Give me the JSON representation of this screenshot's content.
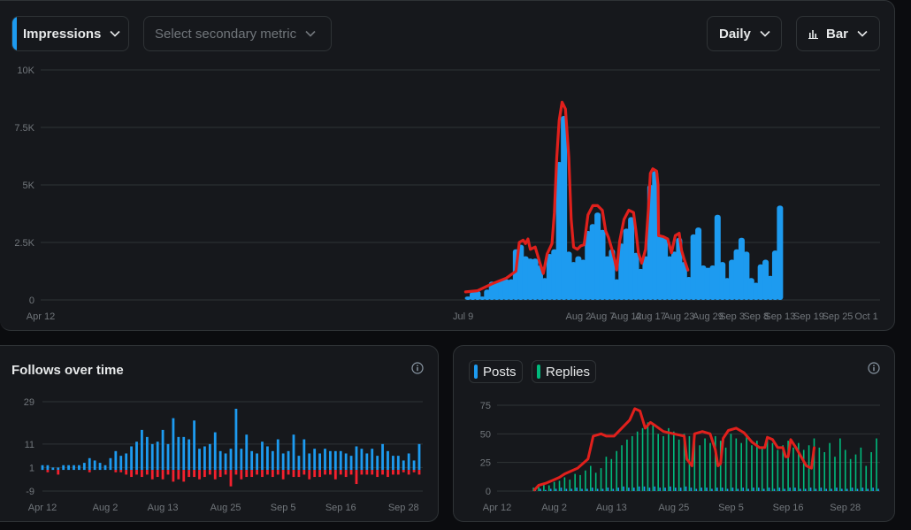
{
  "toolbar": {
    "primary_metric": "Impressions",
    "secondary_placeholder": "Select secondary metric",
    "interval": "Daily",
    "chart_type": "Bar"
  },
  "follows": {
    "title": "Follows over time"
  },
  "posts_legend": {
    "posts": "Posts",
    "replies": "Replies"
  },
  "colors": {
    "blue": "#1d9bf0",
    "green": "#00ba7c",
    "red": "#f4212e",
    "annotation": "#e0201c"
  },
  "chart_data": [
    {
      "name": "impressions",
      "type": "bar",
      "ylim": [
        0,
        10000
      ],
      "yticks": [
        0,
        2500,
        5000,
        7500,
        10000
      ],
      "ytick_labels": [
        "0",
        "2.5K",
        "5K",
        "7.5K",
        "10K"
      ],
      "xticks": [
        {
          "label": "Apr 12",
          "i": 0
        },
        {
          "label": "Jul 9",
          "i": 88
        },
        {
          "label": "Aug 2",
          "i": 112
        },
        {
          "label": "Aug 7",
          "i": 117
        },
        {
          "label": "Aug 12",
          "i": 122
        },
        {
          "label": "Aug 17",
          "i": 127
        },
        {
          "label": "Aug 23",
          "i": 133
        },
        {
          "label": "Aug 29",
          "i": 139
        },
        {
          "label": "Sep 3",
          "i": 144
        },
        {
          "label": "Sep 8",
          "i": 149
        },
        {
          "label": "Sep 13",
          "i": 154
        },
        {
          "label": "Sep 19",
          "i": 160
        },
        {
          "label": "Sep 25",
          "i": 166
        },
        {
          "label": "Oct 1",
          "i": 172
        }
      ],
      "domain": [
        0,
        173
      ],
      "bars": [
        [
          89,
          150
        ],
        [
          90,
          350
        ],
        [
          91,
          400
        ],
        [
          92,
          150
        ],
        [
          93,
          450
        ],
        [
          94,
          800
        ],
        [
          95,
          800
        ],
        [
          96,
          900
        ],
        [
          97,
          900
        ],
        [
          98,
          900
        ],
        [
          99,
          2200
        ],
        [
          100,
          2400
        ],
        [
          101,
          1900
        ],
        [
          102,
          1800
        ],
        [
          103,
          1800
        ],
        [
          104,
          1500
        ],
        [
          105,
          950
        ],
        [
          106,
          2000
        ],
        [
          107,
          2200
        ],
        [
          108,
          6000
        ],
        [
          109,
          8000
        ],
        [
          110,
          2100
        ],
        [
          111,
          1650
        ],
        [
          112,
          1900
        ],
        [
          113,
          1750
        ],
        [
          114,
          3000
        ],
        [
          115,
          3300
        ],
        [
          116,
          3800
        ],
        [
          117,
          3050
        ],
        [
          118,
          1900
        ],
        [
          119,
          2200
        ],
        [
          120,
          900
        ],
        [
          121,
          2450
        ],
        [
          122,
          3100
        ],
        [
          123,
          3600
        ],
        [
          124,
          2050
        ],
        [
          125,
          1350
        ],
        [
          126,
          1900
        ],
        [
          127,
          5000
        ],
        [
          128,
          5600
        ],
        [
          129,
          2750
        ],
        [
          130,
          2750
        ],
        [
          131,
          1900
        ],
        [
          132,
          2100
        ],
        [
          133,
          2700
        ],
        [
          134,
          1650
        ],
        [
          135,
          1000
        ],
        [
          136,
          2850
        ],
        [
          137,
          3150
        ],
        [
          138,
          1500
        ],
        [
          139,
          1400
        ],
        [
          140,
          1500
        ],
        [
          141,
          3700
        ],
        [
          142,
          1650
        ],
        [
          143,
          950
        ],
        [
          144,
          1750
        ],
        [
          145,
          2200
        ],
        [
          146,
          2700
        ],
        [
          147,
          2100
        ],
        [
          148,
          950
        ],
        [
          149,
          750
        ],
        [
          150,
          1550
        ],
        [
          151,
          1750
        ],
        [
          152,
          1050
        ],
        [
          153,
          2150
        ],
        [
          154,
          4100
        ]
      ],
      "annotation": [
        [
          88.5,
          350
        ],
        [
          91,
          400
        ],
        [
          94,
          700
        ],
        [
          97,
          950
        ],
        [
          99,
          1250
        ],
        [
          99.7,
          2500
        ],
        [
          100.5,
          2600
        ],
        [
          101,
          2450
        ],
        [
          101.5,
          2650
        ],
        [
          102,
          2200
        ],
        [
          103,
          2300
        ],
        [
          104,
          1600
        ],
        [
          104.7,
          1150
        ],
        [
          105.5,
          2000
        ],
        [
          106.5,
          2450
        ],
        [
          107,
          3800
        ],
        [
          107.5,
          6200
        ],
        [
          108,
          7800
        ],
        [
          108.6,
          8600
        ],
        [
          109.3,
          8300
        ],
        [
          110,
          6200
        ],
        [
          110.5,
          3500
        ],
        [
          111,
          2300
        ],
        [
          111.8,
          2200
        ],
        [
          112.5,
          2350
        ],
        [
          113.2,
          2400
        ],
        [
          114,
          3700
        ],
        [
          115,
          4100
        ],
        [
          116,
          4100
        ],
        [
          117,
          3900
        ],
        [
          117.7,
          3000
        ],
        [
          118.3,
          2700
        ],
        [
          119,
          2200
        ],
        [
          119.6,
          1700
        ],
        [
          120,
          1300
        ],
        [
          120.6,
          2550
        ],
        [
          121.5,
          3500
        ],
        [
          122.5,
          3900
        ],
        [
          123.5,
          3800
        ],
        [
          124,
          3000
        ],
        [
          124.5,
          2050
        ],
        [
          125.2,
          1600
        ],
        [
          126,
          2200
        ],
        [
          126.6,
          4000
        ],
        [
          127,
          5500
        ],
        [
          127.5,
          5700
        ],
        [
          128.3,
          5600
        ],
        [
          128.6,
          5000
        ],
        [
          128.7,
          2800
        ],
        [
          129.7,
          2750
        ],
        [
          130.6,
          2650
        ],
        [
          131.4,
          2050
        ],
        [
          132.2,
          2800
        ],
        [
          133,
          2900
        ],
        [
          133.5,
          2150
        ],
        [
          134,
          1800
        ],
        [
          134.8,
          1300
        ]
      ]
    },
    {
      "name": "follows",
      "type": "bar",
      "ylim": [
        -9,
        29
      ],
      "yticks": [
        -9,
        1,
        11,
        29
      ],
      "ytick_labels": [
        "-9",
        "1",
        "11",
        "29"
      ],
      "xticks": [
        {
          "label": "Apr 12",
          "i": 0
        },
        {
          "label": "Aug 2",
          "i": 12
        },
        {
          "label": "Aug 13",
          "i": 23
        },
        {
          "label": "Aug 25",
          "i": 35
        },
        {
          "label": "Sep 5",
          "i": 46
        },
        {
          "label": "Sep 16",
          "i": 57
        },
        {
          "label": "Sep 28",
          "i": 69
        }
      ],
      "domain": [
        0,
        72
      ],
      "positive": [
        2,
        2,
        1,
        1,
        2,
        2,
        2,
        2,
        3,
        5,
        4,
        3,
        2,
        5,
        8,
        6,
        7,
        10,
        12,
        17,
        14,
        11,
        12,
        17,
        11,
        22,
        14,
        14,
        13,
        21,
        9,
        10,
        11,
        16,
        8,
        7,
        9,
        26,
        9,
        15,
        8,
        7,
        12,
        10,
        8,
        13,
        7,
        8,
        15,
        6,
        13,
        7,
        9,
        7,
        9,
        8,
        8,
        8,
        7,
        6,
        10,
        9,
        7,
        9,
        6,
        11,
        8,
        6,
        6,
        4,
        7,
        4,
        11
      ],
      "negative": [
        0,
        -1,
        0,
        -2,
        0,
        0,
        0,
        0,
        0,
        -1,
        0,
        0,
        0,
        0,
        -1,
        -1,
        -2,
        -3,
        -2,
        -3,
        -2,
        -4,
        -3,
        -4,
        -2,
        -5,
        -4,
        -5,
        -3,
        -3,
        -4,
        -3,
        -2,
        -4,
        -3,
        -2,
        -7,
        -2,
        -4,
        -3,
        -3,
        -2,
        -3,
        -2,
        -3,
        -2,
        -4,
        -2,
        -3,
        -3,
        -2,
        -4,
        -3,
        -3,
        -2,
        -2,
        -4,
        -2,
        -3,
        -2,
        -6,
        -2,
        -2,
        -2,
        -3,
        -2,
        -3,
        -2,
        -2,
        -1,
        -2,
        -1,
        -2
      ]
    },
    {
      "name": "posts-replies",
      "type": "bar",
      "ylim": [
        0,
        75
      ],
      "yticks": [
        0,
        25,
        50,
        75
      ],
      "ytick_labels": [
        "0",
        "25",
        "50",
        "75"
      ],
      "xticks": [
        {
          "label": "Apr 12",
          "i": 0
        },
        {
          "label": "Aug 2",
          "i": 11
        },
        {
          "label": "Aug 13",
          "i": 22
        },
        {
          "label": "Aug 25",
          "i": 34
        },
        {
          "label": "Sep 5",
          "i": 45
        },
        {
          "label": "Sep 16",
          "i": 56
        },
        {
          "label": "Sep 28",
          "i": 67
        }
      ],
      "domain": [
        0,
        73
      ],
      "series": [
        {
          "name": "Posts",
          "values": [
            0,
            0,
            0,
            0,
            0,
            0,
            0,
            1,
            2,
            1,
            2,
            2,
            3,
            2,
            2,
            3,
            2,
            2,
            3,
            2,
            2,
            3,
            2,
            3,
            4,
            3,
            3,
            4,
            4,
            3,
            4,
            3,
            3,
            4,
            3,
            3,
            4,
            3,
            2,
            3,
            3,
            2,
            3,
            3,
            2,
            3,
            2,
            3,
            2,
            3,
            3,
            2,
            3,
            2,
            3,
            2,
            3,
            3,
            2,
            2,
            3,
            2,
            3,
            2,
            2,
            3,
            2,
            2,
            3,
            2,
            3,
            2,
            3,
            2
          ]
        },
        {
          "name": "Replies",
          "values": [
            0,
            0,
            0,
            0,
            0,
            0,
            0,
            3,
            4,
            6,
            5,
            8,
            9,
            12,
            10,
            15,
            14,
            18,
            22,
            16,
            20,
            30,
            28,
            35,
            40,
            45,
            48,
            52,
            55,
            60,
            58,
            50,
            48,
            55,
            52,
            45,
            50,
            48,
            44,
            40,
            46,
            42,
            48,
            44,
            38,
            50,
            46,
            42,
            48,
            40,
            44,
            38,
            46,
            42,
            36,
            40,
            44,
            38,
            42,
            36,
            40,
            46,
            38,
            34,
            42,
            30,
            46,
            36,
            28,
            32,
            38,
            22,
            34,
            46
          ]
        }
      ],
      "annotation": [
        [
          7.2,
          1
        ],
        [
          8,
          5
        ],
        [
          9.5,
          7
        ],
        [
          11,
          10
        ],
        [
          12,
          12
        ],
        [
          13,
          15
        ],
        [
          15.5,
          20
        ],
        [
          17.5,
          28
        ],
        [
          18,
          38
        ],
        [
          18.5,
          48
        ],
        [
          20,
          50
        ],
        [
          21,
          48
        ],
        [
          22.5,
          48
        ],
        [
          24,
          55
        ],
        [
          25.5,
          62
        ],
        [
          26.5,
          72
        ],
        [
          27.5,
          70
        ],
        [
          28.5,
          55
        ],
        [
          29.5,
          60
        ],
        [
          30.5,
          57
        ],
        [
          32,
          52
        ],
        [
          34,
          50
        ],
        [
          36,
          48
        ],
        [
          36.5,
          28
        ],
        [
          37.5,
          22
        ],
        [
          38,
          50
        ],
        [
          39.5,
          52
        ],
        [
          41,
          50
        ],
        [
          42,
          36
        ],
        [
          42.5,
          22
        ],
        [
          43,
          24
        ],
        [
          43.5,
          46
        ],
        [
          44.5,
          53
        ],
        [
          46,
          55
        ],
        [
          47.5,
          51
        ],
        [
          49,
          43
        ],
        [
          50.5,
          38
        ],
        [
          51.5,
          38
        ],
        [
          52,
          47
        ],
        [
          53,
          45
        ],
        [
          54,
          38
        ],
        [
          55,
          38
        ],
        [
          55.5,
          30
        ],
        [
          56,
          30
        ],
        [
          56.5,
          45
        ],
        [
          57.5,
          38
        ],
        [
          58.5,
          30
        ],
        [
          59.5,
          22
        ],
        [
          60.5,
          20
        ],
        [
          61,
          38
        ]
      ]
    }
  ]
}
